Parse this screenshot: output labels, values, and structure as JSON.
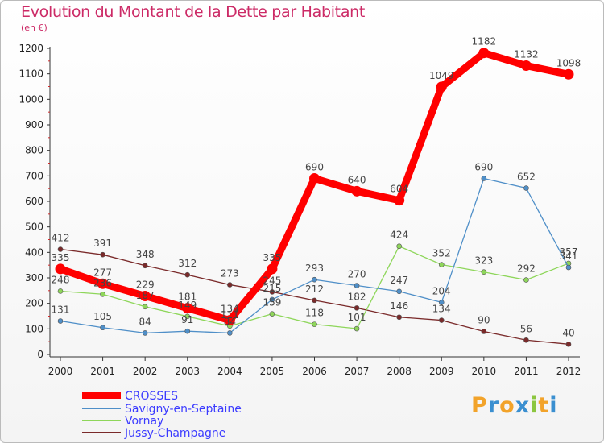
{
  "chart_data": {
    "type": "line",
    "title": "Evolution du Montant de la Dette par Habitant",
    "subtitle": "(en €)",
    "x": [
      "2000",
      "2001",
      "2002",
      "2003",
      "2004",
      "2005",
      "2006",
      "2007",
      "2008",
      "2009",
      "2010",
      "2011",
      "2012"
    ],
    "ylim": [
      0,
      1200
    ],
    "yticks": [
      0,
      100,
      200,
      300,
      400,
      500,
      600,
      700,
      800,
      900,
      1000,
      1100,
      1200
    ],
    "grid": false,
    "legend": "bottom-left",
    "series": [
      {
        "name": "CROSSES",
        "color": "#ff0000",
        "values": [
          335,
          277,
          229,
          181,
          134,
          335,
          690,
          640,
          604,
          1049,
          1182,
          1132,
          1098
        ],
        "labels": [
          "335",
          "277",
          "229",
          "181",
          "134",
          "335",
          "690",
          "640",
          "604",
          "1049",
          "1182",
          "1132",
          "1098"
        ]
      },
      {
        "name": "Savigny-en-Septaine",
        "color": "#4f8fc8",
        "values": [
          131,
          105,
          84,
          91,
          84,
          215,
          293,
          270,
          247,
          204,
          690,
          652,
          341
        ],
        "labels": [
          "131",
          "105",
          "84",
          "91",
          "84",
          "215",
          "293",
          "270",
          "247",
          "204",
          "690",
          "652",
          "341"
        ]
      },
      {
        "name": "Vornay",
        "color": "#8ed65a",
        "values": [
          248,
          236,
          187,
          149,
          111,
          159,
          118,
          101,
          424,
          352,
          323,
          292,
          357
        ],
        "labels": [
          "248",
          "236",
          "187",
          "149",
          "111",
          "159",
          "118",
          "101",
          "424",
          "352",
          "323",
          "292",
          "357"
        ]
      },
      {
        "name": "Jussy-Champagne",
        "color": "#7a2a2a",
        "values": [
          412,
          391,
          348,
          312,
          273,
          245,
          212,
          182,
          146,
          134,
          90,
          56,
          40
        ],
        "labels": [
          "412",
          "391",
          "348",
          "312",
          "273",
          "245",
          "212",
          "182",
          "146",
          "134",
          "90",
          "56",
          "40"
        ]
      }
    ]
  },
  "brand": {
    "letters": [
      "P",
      "r",
      "o",
      "x",
      "i",
      "t",
      "i"
    ],
    "colors": [
      "#f2a32a",
      "#3a8fd0",
      "#f2a32a",
      "#3a8fd0",
      "#8cc63f",
      "#f2a32a",
      "#3a8fd0"
    ]
  }
}
